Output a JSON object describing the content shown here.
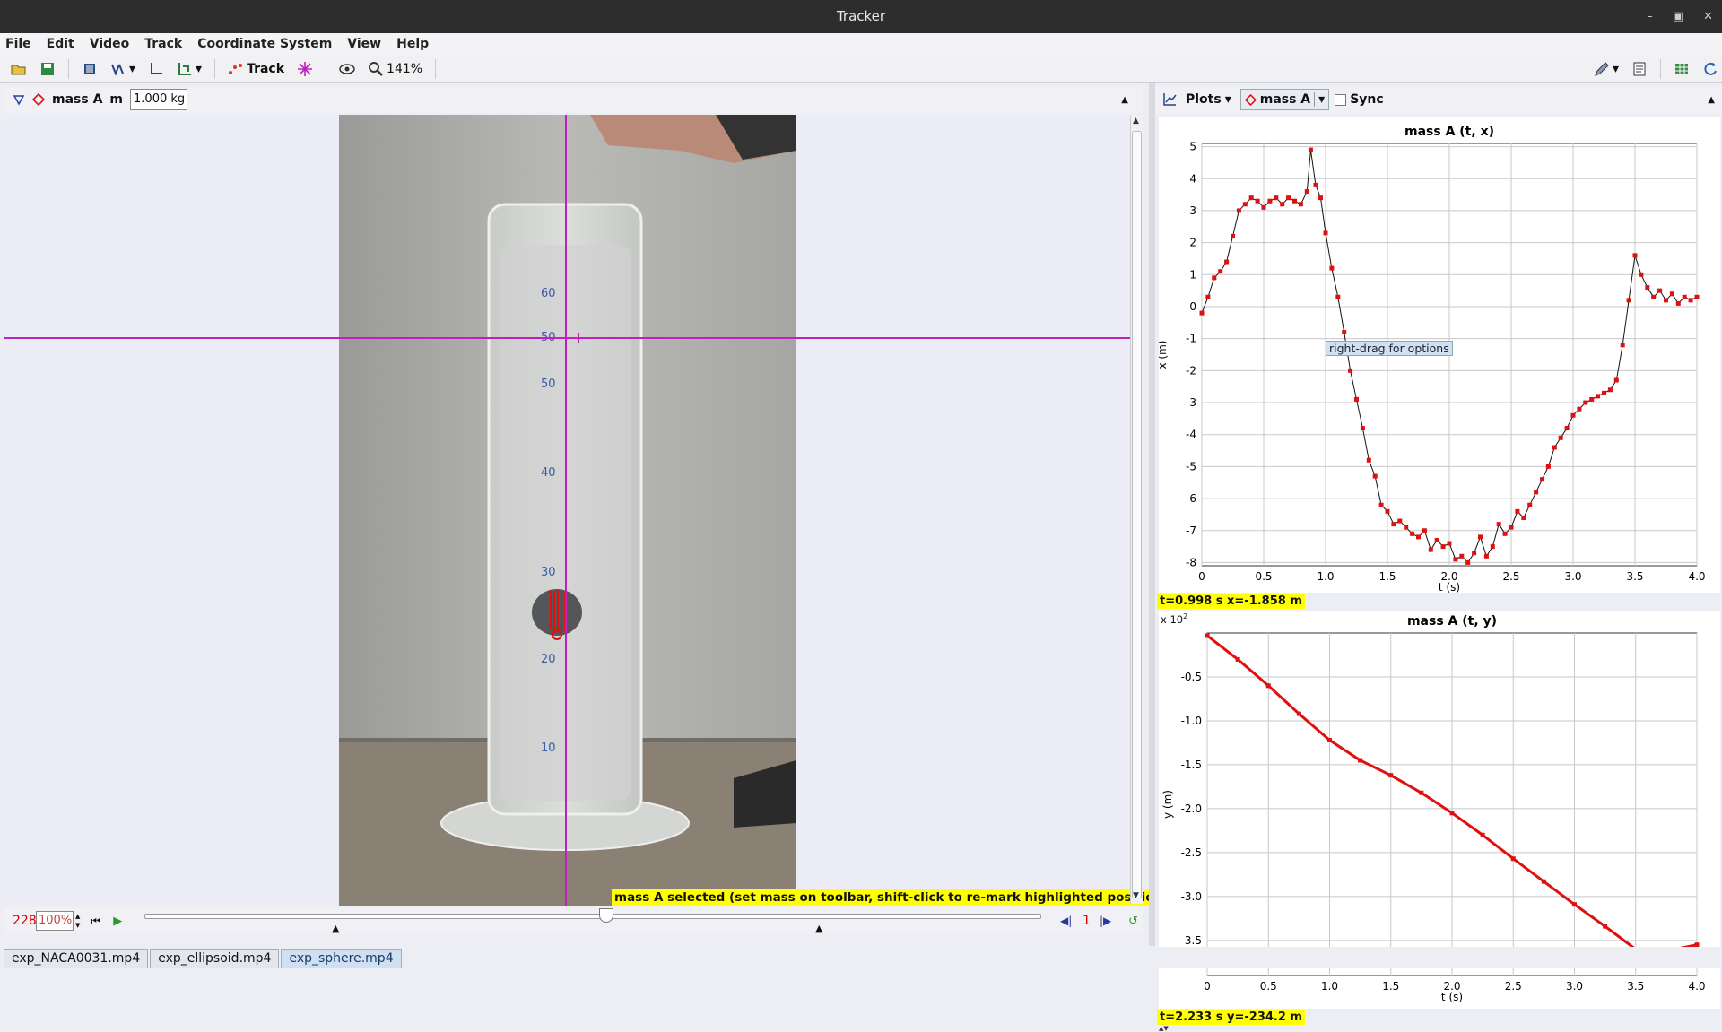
{
  "window": {
    "title": "Tracker"
  },
  "menu": [
    "File",
    "Edit",
    "Video",
    "Track",
    "Coordinate System",
    "View",
    "Help"
  ],
  "toolbar": {
    "track_label": "Track",
    "zoom": "141%"
  },
  "left_header": {
    "track_name": "mass A",
    "mass_label": "m",
    "mass_value": "1.000 kg"
  },
  "video": {
    "status_message": "mass A selected (set mass on toolbar, shift-click to re-mark highlighted position)",
    "scale_marks": [
      "60",
      "50",
      "50",
      "40",
      "30",
      "20",
      "10"
    ]
  },
  "player": {
    "frame": "228",
    "speed": "100%",
    "step": "1"
  },
  "right_header": {
    "plots_label": "Plots",
    "track_label": "mass A",
    "sync_label": "Sync"
  },
  "plot1": {
    "readout": "t=0.998 s  x=-1.858 m",
    "tooltip": "right-drag for options"
  },
  "plot2": {
    "readout": "t=2.233 s  y=-234.2 m",
    "multiplier": "x 10",
    "multiplier_exp": "2"
  },
  "tabs": [
    "exp_NACA0031.mp4",
    "exp_ellipsoid.mp4",
    "exp_sphere.mp4"
  ],
  "colors": {
    "accent_magenta": "#c020c0",
    "marker_red": "#e01010",
    "readout_yellow": "#ffff00"
  },
  "chart_data": [
    {
      "type": "line",
      "title": "mass A (t, x)",
      "xlabel": "t (s)",
      "ylabel": "x (m)",
      "xlim": [
        0,
        4.0
      ],
      "ylim": [
        -8.1,
        5.1
      ],
      "xticks": [
        "0",
        "0.5",
        "1.0",
        "1.5",
        "2.0",
        "2.5",
        "3.0",
        "3.5",
        "4.0"
      ],
      "yticks": [
        "5",
        "4",
        "3",
        "2",
        "1",
        "0",
        "-1",
        "-2",
        "-3",
        "-4",
        "-5",
        "-6",
        "-7",
        "-8"
      ],
      "grid": true,
      "series": [
        {
          "x": [
            0.0,
            0.05,
            0.1,
            0.15,
            0.2,
            0.25,
            0.3,
            0.35,
            0.4,
            0.45,
            0.5,
            0.55,
            0.6,
            0.65,
            0.7,
            0.75,
            0.8,
            0.85,
            0.88,
            0.92,
            0.96,
            1.0,
            1.05,
            1.1,
            1.15,
            1.2,
            1.25,
            1.3,
            1.35,
            1.4,
            1.45,
            1.5,
            1.55,
            1.6,
            1.65,
            1.7,
            1.75,
            1.8,
            1.85,
            1.9,
            1.95,
            2.0,
            2.05,
            2.1,
            2.15,
            2.2,
            2.25,
            2.3,
            2.35,
            2.4,
            2.45,
            2.5,
            2.55,
            2.6,
            2.65,
            2.7,
            2.75,
            2.8,
            2.85,
            2.9,
            2.95,
            3.0,
            3.05,
            3.1,
            3.15,
            3.2,
            3.25,
            3.3,
            3.35,
            3.4,
            3.45,
            3.5,
            3.55,
            3.6,
            3.65,
            3.7,
            3.75,
            3.8,
            3.85,
            3.9,
            3.95,
            4.0
          ],
          "y": [
            -0.2,
            0.3,
            0.9,
            1.1,
            1.4,
            2.2,
            3.0,
            3.2,
            3.4,
            3.3,
            3.1,
            3.3,
            3.4,
            3.2,
            3.4,
            3.3,
            3.2,
            3.6,
            4.9,
            3.8,
            3.4,
            2.3,
            1.2,
            0.3,
            -0.8,
            -2.0,
            -2.9,
            -3.8,
            -4.8,
            -5.3,
            -6.2,
            -6.4,
            -6.8,
            -6.7,
            -6.9,
            -7.1,
            -7.2,
            -7.0,
            -7.6,
            -7.3,
            -7.5,
            -7.4,
            -7.9,
            -7.8,
            -8.0,
            -7.7,
            -7.2,
            -7.8,
            -7.5,
            -6.8,
            -7.1,
            -6.9,
            -6.4,
            -6.6,
            -6.2,
            -5.8,
            -5.4,
            -5.0,
            -4.4,
            -4.1,
            -3.8,
            -3.4,
            -3.2,
            -3.0,
            -2.9,
            -2.8,
            -2.7,
            -2.6,
            -2.3,
            -1.2,
            0.2,
            1.6,
            1.0,
            0.6,
            0.3,
            0.5,
            0.2,
            0.4,
            0.1,
            0.3,
            0.2,
            0.3
          ]
        }
      ]
    },
    {
      "type": "line",
      "title": "mass A (t, y)",
      "xlabel": "t (s)",
      "ylabel": "y (m)",
      "xlim": [
        0,
        4.0
      ],
      "ylim": [
        -3.9,
        0.0
      ],
      "xticks": [
        "0",
        "0.5",
        "1.0",
        "1.5",
        "2.0",
        "2.5",
        "3.0",
        "3.5",
        "4.0"
      ],
      "yticks": [
        "-0.5",
        "-1.0",
        "-1.5",
        "-2.0",
        "-2.5",
        "-3.0",
        "-3.5"
      ],
      "grid": true,
      "series": [
        {
          "x": [
            0.0,
            0.25,
            0.5,
            0.75,
            1.0,
            1.25,
            1.5,
            1.75,
            2.0,
            2.25,
            2.5,
            2.75,
            3.0,
            3.25,
            3.5,
            3.6,
            3.75,
            4.0
          ],
          "y": [
            -0.03,
            -0.3,
            -0.6,
            -0.92,
            -1.22,
            -1.45,
            -1.62,
            -1.82,
            -2.05,
            -2.3,
            -2.57,
            -2.83,
            -3.09,
            -3.34,
            -3.6,
            -3.72,
            -3.62,
            -3.55
          ]
        }
      ]
    }
  ]
}
